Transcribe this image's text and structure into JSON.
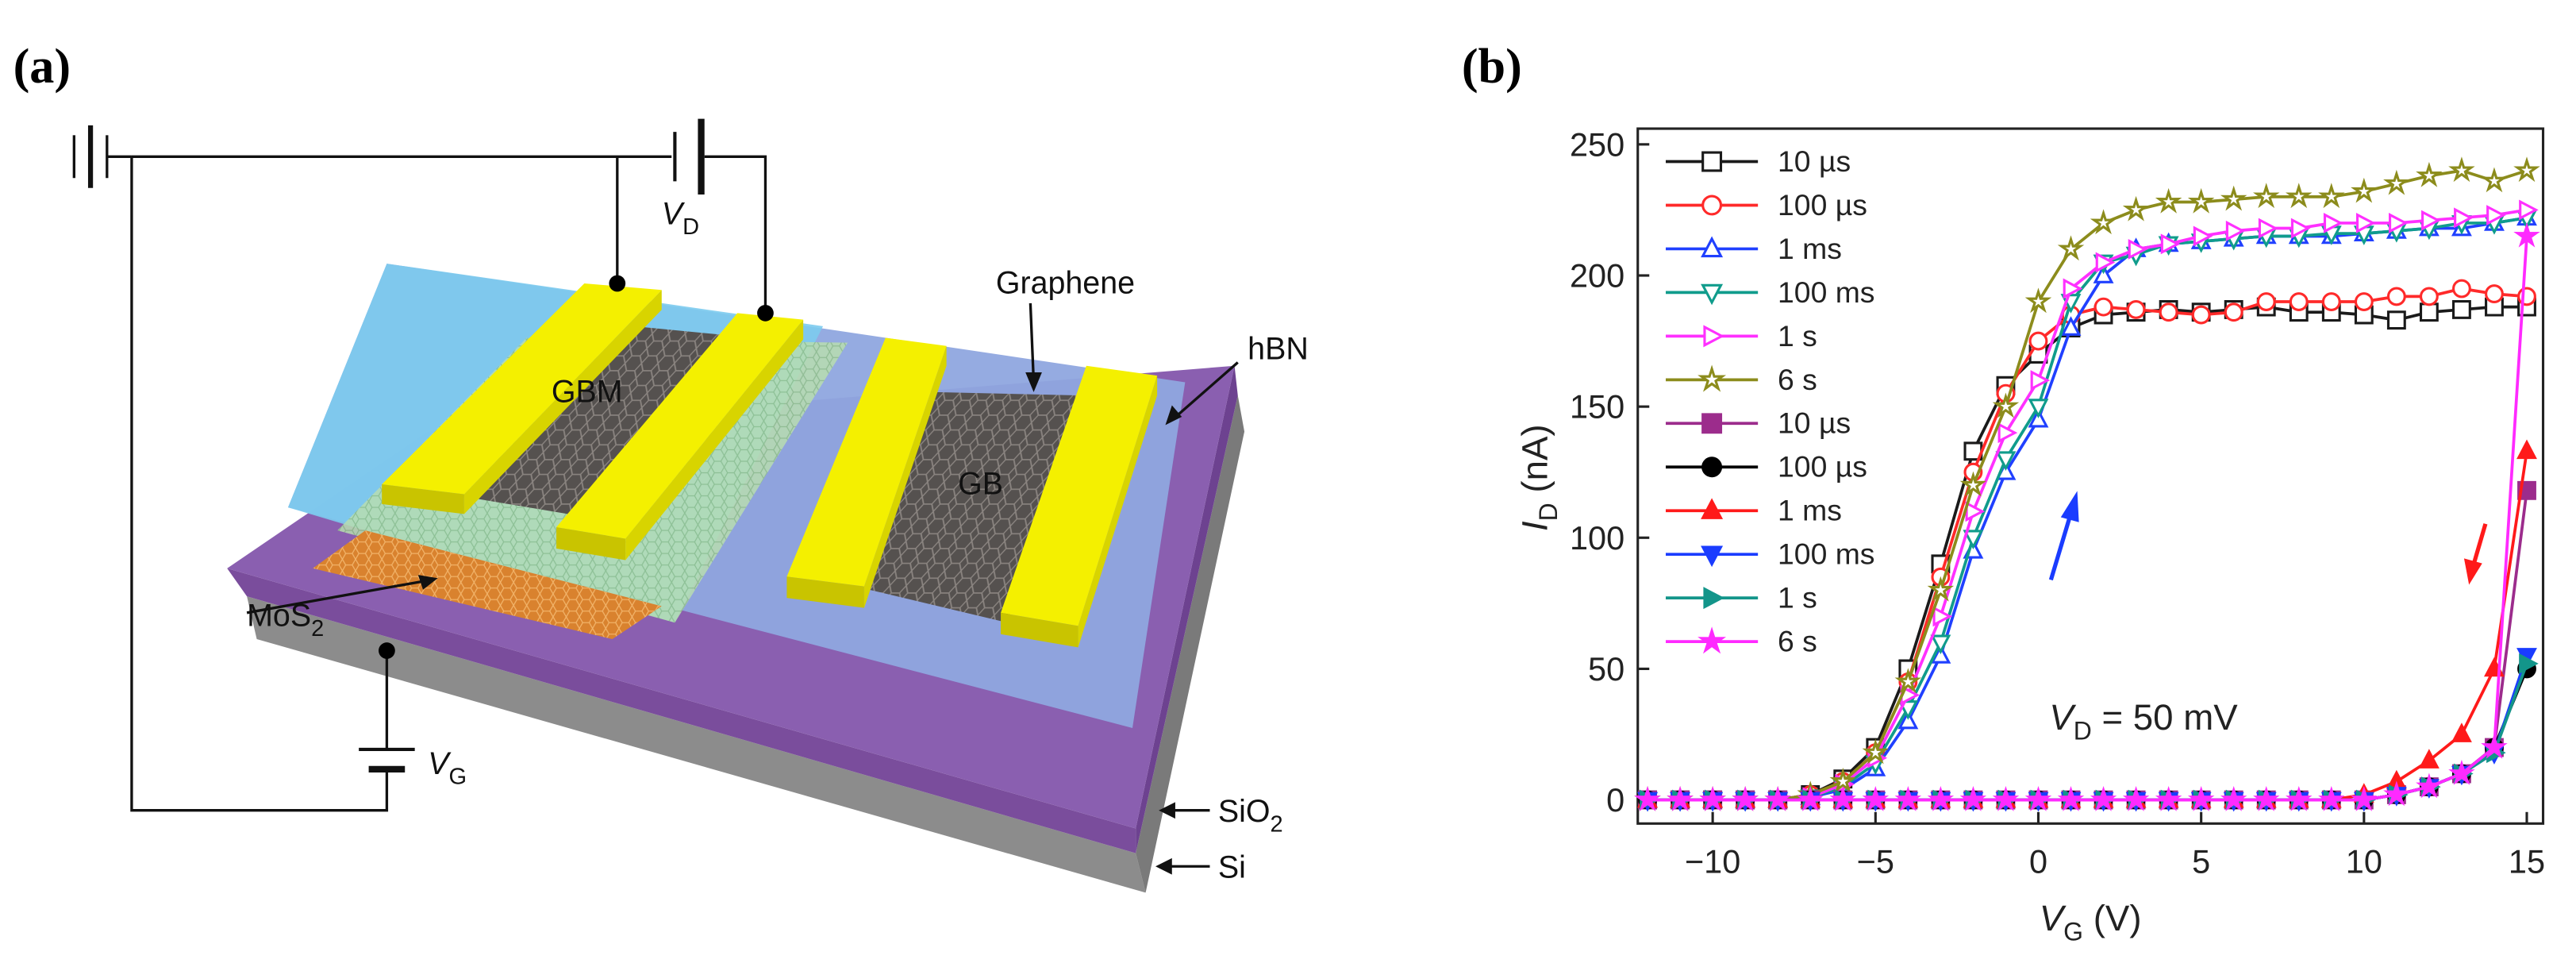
{
  "panel_labels": [
    "(a)",
    "(b)"
  ],
  "diagram": {
    "labels": {
      "v_d": [
        "V",
        "D"
      ],
      "v_g": [
        "V",
        "G"
      ],
      "gbm": "GBM",
      "gb": "GB",
      "graphene": "Graphene",
      "hbn": "hBN",
      "mos2": [
        "MoS",
        "2"
      ],
      "sio2": [
        "SiO",
        "2"
      ],
      "si": "Si"
    }
  },
  "chart_data": {
    "type": "line",
    "xlabel": [
      "V",
      "G",
      " (V)"
    ],
    "ylabel": [
      "I",
      "D",
      " (nA)"
    ],
    "annotation": [
      "V",
      "D",
      " = 50 mV"
    ],
    "xlim": [
      -12.3,
      15.5
    ],
    "ylim": [
      -9,
      256
    ],
    "xticks": [
      {
        "value": -10,
        "label": "−10"
      },
      {
        "value": -5,
        "label": "−5"
      },
      0,
      5,
      10,
      15
    ],
    "yticks": [
      0,
      50,
      100,
      150,
      200,
      250
    ],
    "x": [
      -12,
      -11,
      -10,
      -9,
      -8,
      -7,
      -6,
      -5,
      -4,
      -3,
      -2,
      -1,
      0,
      1,
      2,
      3,
      4,
      5,
      6,
      7,
      8,
      9,
      10,
      11,
      12,
      13,
      14,
      15
    ],
    "series": [
      {
        "name": "10 µs",
        "color": "#1a1a1a",
        "marker": "square",
        "filled": false,
        "values": [
          0,
          0,
          0,
          0,
          0,
          2,
          8,
          20,
          50,
          90,
          133,
          158,
          170,
          180,
          185,
          186,
          187,
          186,
          187,
          188,
          186,
          186,
          185,
          183,
          186,
          187,
          188,
          188
        ]
      },
      {
        "name": "100 µs",
        "color": "#ff2a2a",
        "marker": "circle",
        "filled": false,
        "values": [
          0,
          0,
          0,
          0,
          0,
          2,
          7,
          18,
          45,
          85,
          125,
          155,
          175,
          185,
          188,
          187,
          186,
          185,
          186,
          190,
          190,
          190,
          190,
          192,
          192,
          195,
          193,
          192
        ]
      },
      {
        "name": "1 ms",
        "color": "#2040ff",
        "marker": "triangle",
        "filled": false,
        "values": [
          0,
          0,
          0,
          0,
          0,
          1,
          4,
          12,
          30,
          55,
          95,
          125,
          145,
          180,
          200,
          210,
          212,
          213,
          214,
          215,
          215,
          215,
          216,
          217,
          218,
          218,
          220,
          222
        ]
      },
      {
        "name": "100 ms",
        "color": "#109c8c",
        "marker": "triangle-down",
        "filled": false,
        "values": [
          0,
          0,
          0,
          0,
          0,
          1,
          5,
          14,
          35,
          60,
          100,
          130,
          150,
          190,
          205,
          208,
          212,
          213,
          214,
          215,
          215,
          216,
          216,
          217,
          218,
          220,
          220,
          222
        ]
      },
      {
        "name": "1 s",
        "color": "#ff30ff",
        "marker": "triangle-right",
        "filled": false,
        "values": [
          0,
          0,
          0,
          0,
          0,
          1,
          6,
          16,
          40,
          70,
          110,
          140,
          160,
          195,
          205,
          210,
          212,
          215,
          217,
          218,
          218,
          220,
          220,
          220,
          221,
          222,
          223,
          225
        ]
      },
      {
        "name": "6 s",
        "color": "#8c8c1c",
        "marker": "star",
        "filled": false,
        "values": [
          0,
          0,
          0,
          0,
          0,
          2,
          7,
          18,
          45,
          80,
          120,
          150,
          190,
          210,
          220,
          225,
          228,
          228,
          229,
          230,
          230,
          230,
          232,
          235,
          238,
          240,
          236,
          240
        ]
      },
      {
        "name": "10 µs",
        "color": "#9c2c8c",
        "marker": "square",
        "filled": true,
        "values": [
          0,
          0,
          0,
          0,
          0,
          0,
          0,
          0,
          0,
          0,
          0,
          0,
          0,
          0,
          0,
          0,
          0,
          0,
          0,
          0,
          0,
          0,
          0,
          2,
          5,
          10,
          20,
          118
        ]
      },
      {
        "name": "100 µs",
        "color": "#000000",
        "marker": "circle",
        "filled": true,
        "values": [
          0,
          0,
          0,
          0,
          0,
          0,
          0,
          0,
          0,
          0,
          0,
          0,
          0,
          0,
          0,
          0,
          0,
          0,
          0,
          0,
          0,
          0,
          0,
          2,
          5,
          10,
          20,
          50
        ]
      },
      {
        "name": "1 ms",
        "color": "#ff1a1a",
        "marker": "triangle",
        "filled": true,
        "values": [
          0,
          0,
          0,
          0,
          0,
          0,
          0,
          0,
          0,
          0,
          0,
          0,
          0,
          0,
          0,
          0,
          0,
          0,
          0,
          0,
          0,
          0,
          2,
          7,
          15,
          25,
          50,
          133
        ]
      },
      {
        "name": "100 ms",
        "color": "#1a3cff",
        "marker": "triangle-down",
        "filled": true,
        "values": [
          0,
          0,
          0,
          0,
          0,
          0,
          0,
          0,
          0,
          0,
          0,
          0,
          0,
          0,
          0,
          0,
          0,
          0,
          0,
          0,
          0,
          0,
          0,
          2,
          5,
          10,
          18,
          55
        ]
      },
      {
        "name": "1 s",
        "color": "#13958a",
        "marker": "triangle-right",
        "filled": true,
        "values": [
          0,
          0,
          0,
          0,
          0,
          0,
          0,
          0,
          0,
          0,
          0,
          0,
          0,
          0,
          0,
          0,
          0,
          0,
          0,
          0,
          0,
          0,
          0,
          2,
          5,
          10,
          18,
          52
        ]
      },
      {
        "name": "6 s",
        "color": "#ff2aff",
        "marker": "star",
        "filled": true,
        "values": [
          0,
          0,
          0,
          0,
          0,
          0,
          0,
          0,
          0,
          0,
          0,
          0,
          0,
          0,
          0,
          0,
          0,
          0,
          0,
          0,
          0,
          0,
          0,
          2,
          5,
          10,
          20,
          215
        ]
      }
    ]
  }
}
